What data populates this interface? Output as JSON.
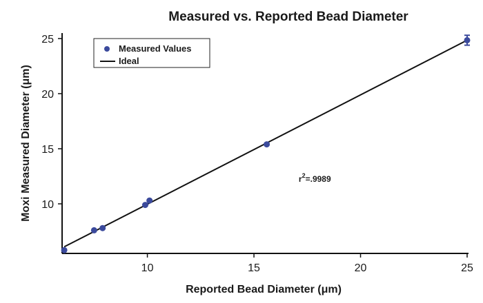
{
  "chart_data": {
    "type": "scatter",
    "title": "Measured vs. Reported Bead Diameter",
    "xlabel": "Reported Bead Diameter (μm)",
    "ylabel": "Moxi Measured Diameter (μm)",
    "xlim": [
      6,
      25
    ],
    "ylim": [
      5.5,
      25.5
    ],
    "xticks": [
      10,
      15,
      20,
      25
    ],
    "yticks": [
      10,
      15,
      20,
      25
    ],
    "series": [
      {
        "name": "Measured Values",
        "kind": "points",
        "color": "#3b4a9c",
        "points": [
          {
            "x": 6.1,
            "y": 5.8,
            "err": 0
          },
          {
            "x": 7.5,
            "y": 7.6,
            "err": 0
          },
          {
            "x": 7.9,
            "y": 7.8,
            "err": 0
          },
          {
            "x": 9.9,
            "y": 9.9,
            "err": 0
          },
          {
            "x": 10.1,
            "y": 10.3,
            "err": 0
          },
          {
            "x": 15.6,
            "y": 15.4,
            "err": 0
          },
          {
            "x": 25.0,
            "y": 24.85,
            "err": 0.45
          }
        ]
      },
      {
        "name": "Ideal",
        "kind": "line",
        "color": "#111111",
        "x": [
          6.1,
          25.0
        ],
        "y": [
          6.1,
          24.85
        ]
      }
    ],
    "legend": {
      "position": "top-left",
      "entries": [
        "Measured Values",
        "Ideal"
      ]
    },
    "annotations": [
      {
        "base": "r",
        "sup": "2",
        "rest": "=.9989",
        "x": 17.1,
        "y": 12.0
      }
    ],
    "grid": false
  }
}
